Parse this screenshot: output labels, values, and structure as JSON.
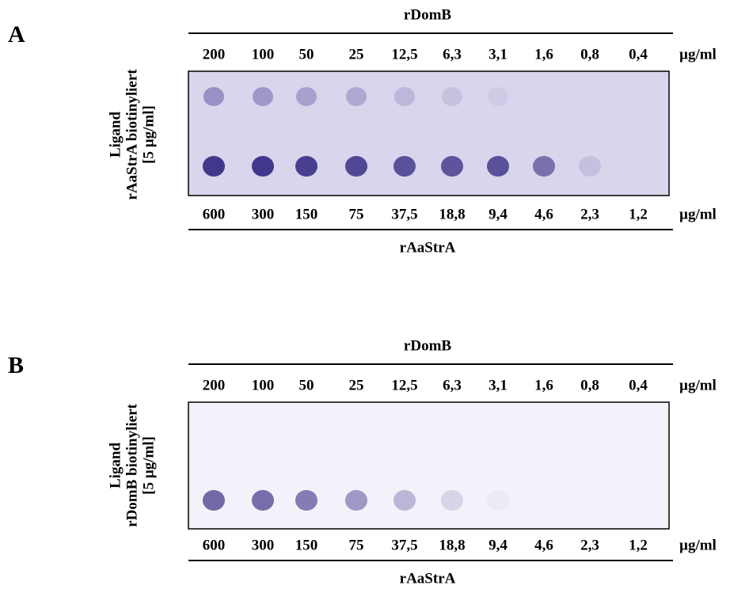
{
  "panels": [
    {
      "label": "A",
      "top_title": "rDomB",
      "top_concentrations": [
        "200",
        "100",
        "50",
        "25",
        "12,5",
        "6,3",
        "3,1",
        "1,6",
        "0,8",
        "0,4"
      ],
      "top_unit": "µg/ml",
      "bottom_concentrations": [
        "600",
        "300",
        "150",
        "75",
        "37,5",
        "18,8",
        "9,4",
        "4,6",
        "2,3",
        "1,2"
      ],
      "bottom_unit": "µg/ml",
      "bottom_title": "rAaStrA",
      "ligand": [
        "Ligand",
        "rAaStrA biotinyliert",
        "[5 µg/ml]"
      ]
    },
    {
      "label": "B",
      "top_title": "rDomB",
      "top_concentrations": [
        "200",
        "100",
        "50",
        "25",
        "12,5",
        "6,3",
        "3,1",
        "1,6",
        "0,8",
        "0,4"
      ],
      "top_unit": "µg/ml",
      "bottom_concentrations": [
        "600",
        "300",
        "150",
        "75",
        "37,5",
        "18,8",
        "9,4",
        "4,6",
        "2,3",
        "1,2"
      ],
      "bottom_unit": "µg/ml",
      "bottom_title": "rAaStrA",
      "ligand": [
        "Ligand",
        "rDomB biotinyliert",
        "[5 µg/ml]"
      ]
    }
  ]
}
